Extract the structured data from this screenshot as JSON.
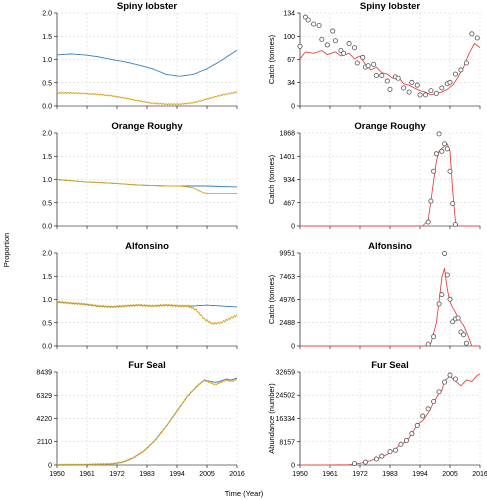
{
  "figure": {
    "shared_xlabel": "Time (Year)",
    "shared_ylabel_left": "Proportion"
  },
  "colors": {
    "blue": "#3b7fb8",
    "orange": "#d9a21b",
    "red": "#e04848",
    "point": "#555555"
  },
  "chart_data": [
    {
      "id": "spiny-left",
      "type": "line",
      "title": "Spiny lobster",
      "xlabel": "",
      "ylabel": "",
      "xlim": [
        1950,
        2016
      ],
      "ylim": [
        0,
        2.0
      ],
      "yticks": [
        "0.0",
        "0.5",
        "1.0",
        "1.5",
        "2.0"
      ],
      "ytick_values": [
        0,
        0.5,
        1.0,
        1.5,
        2.0
      ],
      "xticks": [
        "1950",
        "1961",
        "1972",
        "1983",
        "1994",
        "2005",
        "2016"
      ],
      "xtick_values": [
        1950,
        1961,
        1972,
        1983,
        1994,
        2005,
        2016
      ],
      "show_xtick_labels": false,
      "series": [
        {
          "color": "blue",
          "oscillation": 0.11,
          "x": [
            1950,
            1955,
            1960,
            1965,
            1970,
            1975,
            1980,
            1985,
            1990,
            1995,
            2000,
            2005,
            2010,
            2016
          ],
          "y": [
            1.1,
            1.12,
            1.1,
            1.06,
            1.0,
            0.95,
            0.88,
            0.8,
            0.68,
            0.64,
            0.68,
            0.8,
            0.97,
            1.2
          ]
        },
        {
          "color": "orange",
          "oscillation": 0.02,
          "x": [
            1950,
            1955,
            1960,
            1965,
            1970,
            1975,
            1980,
            1985,
            1990,
            1995,
            2000,
            2005,
            2010,
            2016
          ],
          "y": [
            0.28,
            0.28,
            0.27,
            0.25,
            0.22,
            0.17,
            0.11,
            0.06,
            0.04,
            0.04,
            0.07,
            0.15,
            0.23,
            0.3
          ]
        }
      ]
    },
    {
      "id": "spiny-right",
      "type": "line",
      "title": "Spiny lobster",
      "xlabel": "",
      "ylabel": "Catch (tonnes)",
      "xlim": [
        1950,
        2016
      ],
      "ylim": [
        0,
        134
      ],
      "yticks": [
        "0",
        "34",
        "67",
        "100",
        "134"
      ],
      "ytick_values": [
        0,
        34,
        67,
        100,
        134
      ],
      "xticks": [
        "1950",
        "1961",
        "1972",
        "1983",
        "1994",
        "2005",
        "2016"
      ],
      "xtick_values": [
        1950,
        1961,
        1972,
        1983,
        1994,
        2005,
        2016
      ],
      "show_xtick_labels": false,
      "series": [
        {
          "color": "red",
          "x": [
            1950,
            1952,
            1955,
            1958,
            1960,
            1963,
            1965,
            1968,
            1970,
            1972,
            1974,
            1976,
            1978,
            1980,
            1982,
            1984,
            1986,
            1988,
            1990,
            1992,
            1994,
            1996,
            1998,
            2000,
            2002,
            2004,
            2006,
            2008,
            2010,
            2012,
            2014,
            2016
          ],
          "y": [
            68,
            78,
            76,
            80,
            74,
            78,
            72,
            76,
            68,
            72,
            60,
            52,
            56,
            48,
            46,
            40,
            42,
            32,
            30,
            26,
            22,
            20,
            16,
            18,
            20,
            24,
            30,
            42,
            56,
            76,
            90,
            84
          ]
        }
      ],
      "points": {
        "x": [
          1950,
          1952,
          1953,
          1955,
          1957,
          1958,
          1960,
          1962,
          1963,
          1965,
          1966,
          1968,
          1970,
          1971,
          1973,
          1974,
          1975,
          1977,
          1978,
          1980,
          1982,
          1983,
          1985,
          1986,
          1988,
          1990,
          1991,
          1993,
          1994,
          1996,
          1998,
          2000,
          2002,
          2004,
          2005,
          2007,
          2009,
          2011,
          2013,
          2015
        ],
        "y": [
          86,
          128,
          124,
          118,
          116,
          96,
          88,
          108,
          94,
          80,
          76,
          90,
          84,
          62,
          70,
          56,
          58,
          60,
          44,
          44,
          36,
          24,
          42,
          40,
          26,
          20,
          34,
          30,
          16,
          16,
          22,
          18,
          26,
          32,
          34,
          46,
          52,
          62,
          104,
          98
        ]
      }
    },
    {
      "id": "roughy-left",
      "type": "line",
      "title": "Orange Roughy",
      "xlabel": "",
      "ylabel": "",
      "xlim": [
        1950,
        2016
      ],
      "ylim": [
        0,
        2.0
      ],
      "yticks": [
        "0.0",
        "0.5",
        "1.0",
        "1.5",
        "2.0"
      ],
      "ytick_values": [
        0,
        0.5,
        1.0,
        1.5,
        2.0
      ],
      "xticks": [
        "1950",
        "1961",
        "1972",
        "1983",
        "1994",
        "2005",
        "2016"
      ],
      "xtick_values": [
        1950,
        1961,
        1972,
        1983,
        1994,
        2005,
        2016
      ],
      "show_xtick_labels": false,
      "series": [
        {
          "color": "blue",
          "oscillation": 0,
          "x": [
            1950,
            1960,
            1970,
            1980,
            1990,
            2000,
            2005,
            2010,
            2016
          ],
          "y": [
            1.0,
            0.95,
            0.92,
            0.88,
            0.86,
            0.86,
            0.86,
            0.85,
            0.84
          ]
        },
        {
          "color": "orange",
          "oscillation": 0,
          "x": [
            1950,
            1960,
            1970,
            1980,
            1990,
            1995,
            1998,
            2000,
            2002,
            2004,
            2006,
            2010,
            2016
          ],
          "y": [
            1.0,
            0.95,
            0.92,
            0.88,
            0.86,
            0.86,
            0.84,
            0.82,
            0.76,
            0.71,
            0.7,
            0.7,
            0.7
          ]
        }
      ]
    },
    {
      "id": "roughy-right",
      "type": "line",
      "title": "Orange Roughy",
      "xlabel": "",
      "ylabel": "Catch (tonnes)",
      "xlim": [
        1950,
        2016
      ],
      "ylim": [
        0,
        1868
      ],
      "yticks": [
        "0",
        "467",
        "934",
        "1401",
        "1868"
      ],
      "ytick_values": [
        0,
        467,
        934,
        1401,
        1868
      ],
      "xticks": [
        "1950",
        "1961",
        "1972",
        "1983",
        "1994",
        "2005",
        "2016"
      ],
      "xtick_values": [
        1950,
        1961,
        1972,
        1983,
        1994,
        2005,
        2016
      ],
      "show_xtick_labels": false,
      "series": [
        {
          "color": "red",
          "x": [
            1950,
            1995,
            1997,
            1999,
            2000,
            2001,
            2002,
            2003,
            2004,
            2005,
            2006,
            2007,
            2008,
            2016
          ],
          "y": [
            0,
            0,
            120,
            900,
            1300,
            1500,
            1560,
            1600,
            1650,
            1500,
            700,
            80,
            0,
            0
          ]
        }
      ],
      "points": {
        "x": [
          1997,
          1998,
          1999,
          2000,
          2001,
          2002,
          2003,
          2004,
          2005,
          2006,
          2007
        ],
        "y": [
          80,
          500,
          1100,
          1450,
          1850,
          1500,
          1650,
          1550,
          1100,
          450,
          30
        ]
      }
    },
    {
      "id": "alfonsino-left",
      "type": "line",
      "title": "Alfonsino",
      "xlabel": "",
      "ylabel": "",
      "xlim": [
        1950,
        2016
      ],
      "ylim": [
        0,
        2.0
      ],
      "yticks": [
        "0.0",
        "0.5",
        "1.0",
        "1.5",
        "2.0"
      ],
      "ytick_values": [
        0,
        0.5,
        1.0,
        1.5,
        2.0
      ],
      "xticks": [
        "1950",
        "1961",
        "1972",
        "1983",
        "1994",
        "2005",
        "2016"
      ],
      "xtick_values": [
        1950,
        1961,
        1972,
        1983,
        1994,
        2005,
        2016
      ],
      "show_xtick_labels": false,
      "series": [
        {
          "color": "blue",
          "oscillation": 0.035,
          "x": [
            1950,
            1955,
            1960,
            1965,
            1970,
            1975,
            1980,
            1985,
            1990,
            1995,
            2000,
            2005,
            2010,
            2016
          ],
          "y": [
            0.95,
            0.92,
            0.9,
            0.86,
            0.84,
            0.86,
            0.88,
            0.86,
            0.88,
            0.86,
            0.86,
            0.88,
            0.86,
            0.84
          ]
        },
        {
          "color": "orange",
          "oscillation": 0.035,
          "x": [
            1950,
            1955,
            1960,
            1965,
            1970,
            1975,
            1980,
            1985,
            1990,
            1995,
            1998,
            2001,
            2004,
            2007,
            2010,
            2013,
            2016
          ],
          "y": [
            0.95,
            0.92,
            0.9,
            0.86,
            0.84,
            0.86,
            0.88,
            0.86,
            0.88,
            0.86,
            0.86,
            0.78,
            0.58,
            0.48,
            0.5,
            0.58,
            0.66
          ]
        }
      ]
    },
    {
      "id": "alfonsino-right",
      "type": "line",
      "title": "Alfonsino",
      "xlabel": "",
      "ylabel": "Catch (tonnes)",
      "xlim": [
        1950,
        2016
      ],
      "ylim": [
        0,
        9951
      ],
      "yticks": [
        "0",
        "2488",
        "4976",
        "7463",
        "9951"
      ],
      "ytick_values": [
        0,
        2488,
        4976,
        7463,
        9951
      ],
      "xticks": [
        "1950",
        "1961",
        "1972",
        "1983",
        "1994",
        "2005",
        "2016"
      ],
      "xtick_values": [
        1950,
        1961,
        1972,
        1983,
        1994,
        2005,
        2016
      ],
      "show_xtick_labels": false,
      "series": [
        {
          "color": "red",
          "x": [
            1950,
            1996,
            1998,
            2000,
            2001,
            2002,
            2003,
            2004,
            2005,
            2006,
            2007,
            2008,
            2010,
            2012,
            2013,
            2016
          ],
          "y": [
            0,
            0,
            300,
            2500,
            4800,
            7300,
            8300,
            6100,
            4700,
            4100,
            3600,
            3000,
            2200,
            800,
            0,
            0
          ]
        }
      ],
      "points": {
        "x": [
          1997,
          1999,
          2001,
          2002,
          2003,
          2004,
          2005,
          2006,
          2007,
          2008,
          2009,
          2010,
          2011
        ],
        "y": [
          200,
          1000,
          4500,
          5500,
          9900,
          7600,
          5000,
          2600,
          2900,
          3000,
          1500,
          1200,
          300
        ]
      }
    },
    {
      "id": "fur-left",
      "type": "line",
      "title": "Fur Seal",
      "xlabel": "",
      "ylabel": "",
      "xlim": [
        1950,
        2016
      ],
      "ylim": [
        0,
        8439
      ],
      "yticks": [
        "0",
        "2110",
        "4220",
        "6329",
        "8439"
      ],
      "ytick_values": [
        0,
        2110,
        4220,
        6329,
        8439
      ],
      "xticks": [
        "1950",
        "1961",
        "1972",
        "1983",
        "1994",
        "2005",
        "2016"
      ],
      "xtick_values": [
        1950,
        1961,
        1972,
        1983,
        1994,
        2005,
        2016
      ],
      "show_xtick_labels": true,
      "series": [
        {
          "color": "blue",
          "oscillation": 0,
          "x": [
            1950,
            1960,
            1970,
            1974,
            1978,
            1982,
            1986,
            1990,
            1994,
            1998,
            2002,
            2004,
            2006,
            2008,
            2010,
            2012,
            2014,
            2016
          ],
          "y": [
            30,
            40,
            100,
            250,
            650,
            1300,
            2250,
            3500,
            4900,
            6300,
            7300,
            7700,
            7600,
            7500,
            7600,
            7800,
            7700,
            7900
          ]
        },
        {
          "color": "orange",
          "oscillation": 0.025,
          "x": [
            1950,
            1960,
            1970,
            1974,
            1978,
            1982,
            1986,
            1990,
            1994,
            1998,
            2002,
            2004,
            2006,
            2008,
            2010,
            2012,
            2014,
            2016
          ],
          "y": [
            30,
            40,
            100,
            250,
            650,
            1300,
            2250,
            3500,
            4900,
            6300,
            7300,
            7700,
            7500,
            7300,
            7500,
            7700,
            7600,
            7800
          ]
        }
      ]
    },
    {
      "id": "fur-right",
      "type": "line",
      "title": "Fur Seal",
      "xlabel": "",
      "ylabel": "Abundance (number)",
      "xlim": [
        1950,
        2016
      ],
      "ylim": [
        0,
        32659
      ],
      "yticks": [
        "0",
        "8157",
        "16334",
        "24502",
        "32659"
      ],
      "ytick_values": [
        0,
        8157,
        16334,
        24502,
        32659
      ],
      "xticks": [
        "1950",
        "1961",
        "1972",
        "1983",
        "1994",
        "2005",
        "2016"
      ],
      "xtick_values": [
        1950,
        1961,
        1972,
        1983,
        1994,
        2005,
        2016
      ],
      "show_xtick_labels": true,
      "series": [
        {
          "color": "red",
          "x": [
            1950,
            1960,
            1968,
            1972,
            1975,
            1978,
            1980,
            1983,
            1985,
            1987,
            1989,
            1991,
            1993,
            1995,
            1997,
            1999,
            2001,
            2002,
            2003,
            2005,
            2007,
            2009,
            2011,
            2013,
            2015,
            2016
          ],
          "y": [
            0,
            0,
            100,
            600,
            1300,
            2200,
            2700,
            4300,
            5600,
            7400,
            8100,
            11000,
            14200,
            15600,
            18300,
            21900,
            25200,
            26100,
            29600,
            31100,
            29500,
            27800,
            29900,
            29300,
            31500,
            32000
          ]
        }
      ],
      "points": {
        "x": [
          1970,
          1974,
          1978,
          1980,
          1983,
          1985,
          1987,
          1989,
          1991,
          1993,
          1995,
          1997,
          1999,
          2001,
          2003,
          2005,
          2007
        ],
        "y": [
          500,
          1000,
          2100,
          3100,
          4700,
          5200,
          7300,
          8600,
          11000,
          13900,
          17200,
          19700,
          22300,
          25700,
          29100,
          31600,
          30200
        ]
      }
    }
  ]
}
